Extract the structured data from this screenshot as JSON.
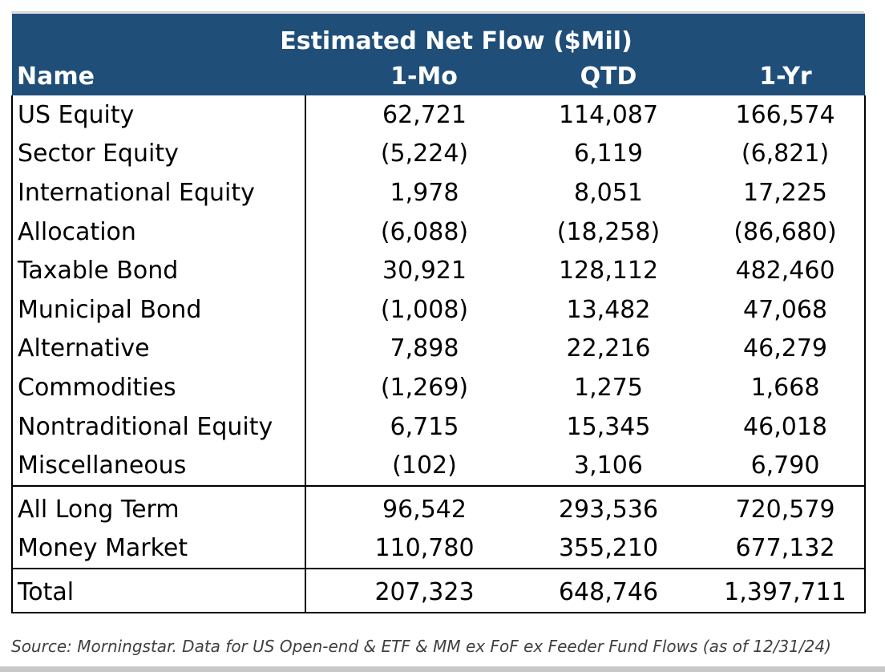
{
  "chart_data": {
    "type": "table",
    "title": "Estimated Net Flow ($Mil)",
    "columns": [
      "Name",
      "1-Mo",
      "QTD",
      "1-Yr"
    ],
    "groups": [
      {
        "rows": [
          {
            "name": "US Equity",
            "mo": "62,721",
            "qtd": "114,087",
            "yr": "166,574"
          },
          {
            "name": "Sector Equity",
            "mo": "(5,224)",
            "qtd": "6,119",
            "yr": "(6,821)"
          },
          {
            "name": "International Equity",
            "mo": "1,978",
            "qtd": "8,051",
            "yr": "17,225"
          },
          {
            "name": "Allocation",
            "mo": "(6,088)",
            "qtd": "(18,258)",
            "yr": "(86,680)"
          },
          {
            "name": "Taxable Bond",
            "mo": "30,921",
            "qtd": "128,112",
            "yr": "482,460"
          },
          {
            "name": "Municipal Bond",
            "mo": "(1,008)",
            "qtd": "13,482",
            "yr": "47,068"
          },
          {
            "name": "Alternative",
            "mo": "7,898",
            "qtd": "22,216",
            "yr": "46,279"
          },
          {
            "name": "Commodities",
            "mo": "(1,269)",
            "qtd": "1,275",
            "yr": "1,668"
          },
          {
            "name": "Nontraditional Equity",
            "mo": "6,715",
            "qtd": "15,345",
            "yr": "46,018"
          },
          {
            "name": "Miscellaneous",
            "mo": "(102)",
            "qtd": "3,106",
            "yr": "6,790"
          }
        ]
      },
      {
        "rows": [
          {
            "name": "All Long Term",
            "mo": "96,542",
            "qtd": "293,536",
            "yr": "720,579"
          },
          {
            "name": "Money Market",
            "mo": "110,780",
            "qtd": "355,210",
            "yr": "677,132"
          }
        ]
      },
      {
        "rows": [
          {
            "name": "Total",
            "mo": "207,323",
            "qtd": "648,746",
            "yr": "1,397,711"
          }
        ]
      }
    ]
  },
  "source_note": "Source: Morningstar. Data for US Open-end & ETF & MM ex FoF ex Feeder Fund Flows (as of 12/31/24)",
  "colors": {
    "header_bg": "#1f4e79",
    "header_text": "#ffffff"
  }
}
